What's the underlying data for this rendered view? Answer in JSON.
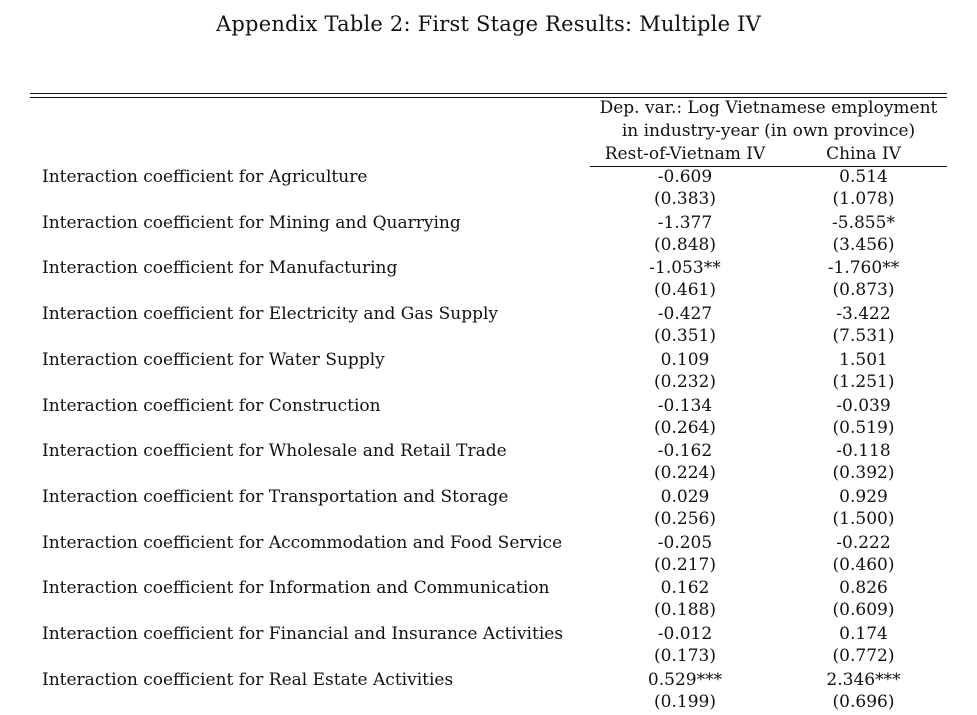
{
  "title": "Appendix Table 2: First Stage Results: Multiple IV",
  "header": {
    "dep_var_line1": "Dep. var.: Log Vietnamese employment",
    "dep_var_line2": "in industry-year (in own province)",
    "columns": [
      "Rest-of-Vietnam IV",
      "China IV"
    ]
  },
  "rows": [
    {
      "label": "Interaction coefficient for Agriculture",
      "coef": [
        "-0.609",
        "0.514"
      ],
      "se": [
        "(0.383)",
        "(1.078)"
      ]
    },
    {
      "label": "Interaction coefficient for Mining and Quarrying",
      "coef": [
        "-1.377",
        "-5.855*"
      ],
      "se": [
        "(0.848)",
        "(3.456)"
      ]
    },
    {
      "label": "Interaction coefficient for Manufacturing",
      "coef": [
        "-1.053**",
        "-1.760**"
      ],
      "se": [
        "(0.461)",
        "(0.873)"
      ]
    },
    {
      "label": "Interaction coefficient for Electricity and Gas Supply",
      "coef": [
        "-0.427",
        "-3.422"
      ],
      "se": [
        "(0.351)",
        "(7.531)"
      ]
    },
    {
      "label": "Interaction coefficient for Water Supply",
      "coef": [
        "0.109",
        "1.501"
      ],
      "se": [
        "(0.232)",
        "(1.251)"
      ]
    },
    {
      "label": "Interaction coefficient for Construction",
      "coef": [
        "-0.134",
        "-0.039"
      ],
      "se": [
        "(0.264)",
        "(0.519)"
      ]
    },
    {
      "label": "Interaction coefficient for Wholesale and Retail Trade",
      "coef": [
        "-0.162",
        "-0.118"
      ],
      "se": [
        "(0.224)",
        "(0.392)"
      ]
    },
    {
      "label": "Interaction coefficient for Transportation and Storage",
      "coef": [
        "0.029",
        "0.929"
      ],
      "se": [
        "(0.256)",
        "(1.500)"
      ]
    },
    {
      "label": "Interaction coefficient for Accommodation and Food Service",
      "coef": [
        "-0.205",
        "-0.222"
      ],
      "se": [
        "(0.217)",
        "(0.460)"
      ]
    },
    {
      "label": "Interaction coefficient for Information and Communication",
      "coef": [
        "0.162",
        "0.826"
      ],
      "se": [
        "(0.188)",
        "(0.609)"
      ]
    },
    {
      "label": "Interaction coefficient for Financial and Insurance Activities",
      "coef": [
        "-0.012",
        "0.174"
      ],
      "se": [
        "(0.173)",
        "(0.772)"
      ]
    },
    {
      "label": "Interaction coefficient for Real Estate Activities",
      "coef": [
        "0.529***",
        "2.346***"
      ],
      "se": [
        "(0.199)",
        "(0.696)"
      ]
    }
  ]
}
